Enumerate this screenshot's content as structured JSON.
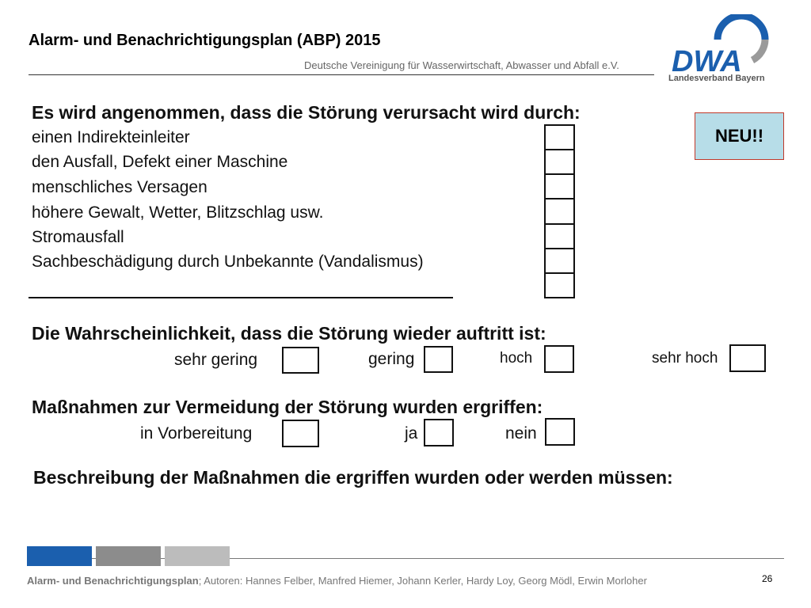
{
  "header": {
    "title": "Alarm- und Benachrichtigungsplan (ABP) 2015",
    "subtitle": "Deutsche Vereinigung für Wasserwirtschaft, Abwasser und Abfall e.V."
  },
  "logo": {
    "mark_text": "DWA",
    "sub_text": "Landesverband Bayern",
    "colors": {
      "blue": "#1b5fae",
      "gray": "#9a9a9a"
    }
  },
  "badge": {
    "label": "NEU!!",
    "bg": "#b7dde8",
    "border": "#c0392b"
  },
  "form": {
    "cause_heading": "Es wird angenommen, dass die Störung verursacht wird durch:",
    "causes": [
      "einen Indirekteinleiter",
      "den Ausfall, Defekt einer Maschine",
      "menschliches Versagen",
      "höhere Gewalt, Wetter, Blitzschlag usw.",
      "Stromausfall",
      "Sachbeschädigung durch Unbekannte (Vandalismus)"
    ],
    "probability_heading": "Die Wahrscheinlichkeit, dass die Störung wieder auftritt ist:",
    "probability_options": [
      "sehr gering",
      "gering",
      "hoch",
      "sehr hoch"
    ],
    "measures_heading": "Maßnahmen zur Vermeidung der Störung wurden ergriffen:",
    "measures_options": [
      "in Vorbereitung",
      "ja",
      "nein"
    ],
    "description_heading": "Beschreibung der Maßnahmen die ergriffen wurden oder werden müssen:"
  },
  "footer": {
    "title": "Alarm- und Benachrichtigungsplan",
    "authors": "; Autoren: Hannes Felber, Manfred Hiemer, Johann Kerler, Hardy Loy, Georg Mödl, Erwin Morloher",
    "page_number": "26",
    "bar_colors": [
      "#1b5fae",
      "#8c8c8c",
      "#bcbcbc"
    ]
  }
}
